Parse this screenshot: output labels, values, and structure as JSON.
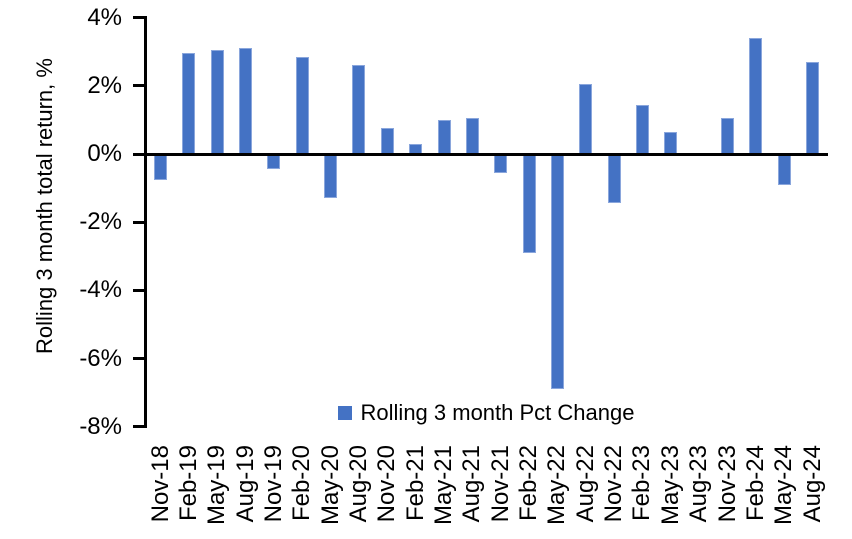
{
  "chart_data": {
    "type": "bar",
    "title": "",
    "xlabel": "",
    "ylabel": "Rolling 3 month total return, %",
    "ylim": [
      -8,
      4
    ],
    "grid": false,
    "legend_position": "bottom-center",
    "axis_color": "#000000",
    "bar_color": "#4472C4",
    "yticks": {
      "values": [
        4,
        2,
        0,
        -2,
        -4,
        -6,
        -8
      ],
      "labels": [
        "4%",
        "2%",
        "0%",
        "-2%",
        "-4%",
        "-6%",
        "-8%"
      ]
    },
    "categories": [
      "Nov-18",
      "Feb-19",
      "May-19",
      "Aug-19",
      "Nov-19",
      "Feb-20",
      "May-20",
      "Aug-20",
      "Nov-20",
      "Feb-21",
      "May-21",
      "Aug-21",
      "Nov-21",
      "Feb-22",
      "May-22",
      "Aug-22",
      "Nov-22",
      "Feb-23",
      "May-23",
      "Aug-23",
      "Nov-23",
      "Feb-24",
      "May-24",
      "Aug-24"
    ],
    "series": [
      {
        "name": "Rolling 3 month Pct Change",
        "color": "#4472C4",
        "values": [
          -0.75,
          2.95,
          3.05,
          3.1,
          -0.45,
          2.85,
          -1.3,
          2.6,
          0.75,
          0.3,
          1.0,
          1.05,
          -0.55,
          -2.9,
          -6.9,
          2.05,
          -1.45,
          1.45,
          0.65,
          0.0,
          1.05,
          3.4,
          -0.9,
          2.7
        ]
      }
    ]
  },
  "legend": {
    "label": "Rolling 3 month Pct Change",
    "swatch_color": "#4472C4"
  }
}
